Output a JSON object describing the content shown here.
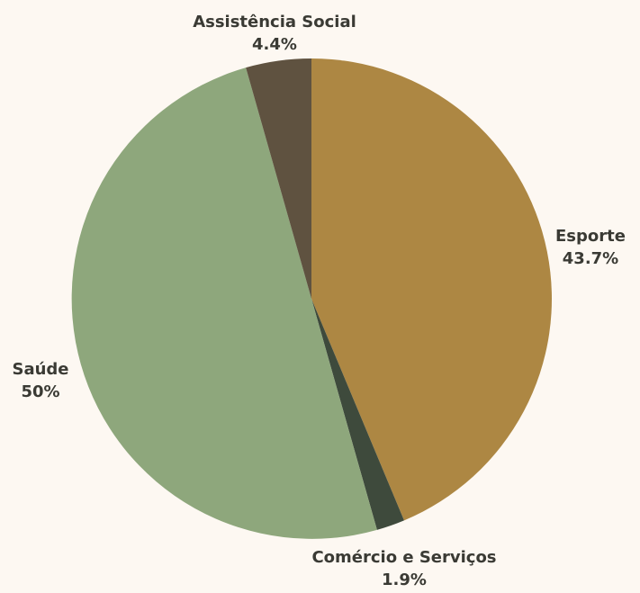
{
  "chart_data": {
    "type": "pie",
    "start_angle_deg": 0,
    "direction": "clockwise",
    "slices": [
      {
        "label": "Esporte",
        "value": 43.7,
        "display": "43.7%",
        "color": "#ad8743"
      },
      {
        "label": "Comércio e Serviços",
        "value": 1.9,
        "display": "1.9%",
        "color": "#3e4a3c"
      },
      {
        "label": "Saúde",
        "value": 50,
        "display": "50%",
        "color": "#8ea77c"
      },
      {
        "label": "Assistência Social",
        "value": 4.4,
        "display": "4.4%",
        "color": "#5f5240"
      }
    ],
    "background": "#fdf8f2",
    "label_color": "#3a3a34",
    "legend": "none"
  }
}
